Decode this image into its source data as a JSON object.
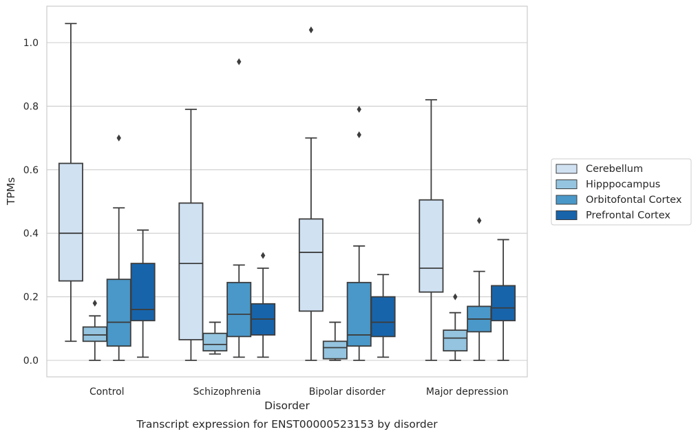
{
  "chart_data": {
    "type": "boxplot",
    "title": "",
    "caption": "Transcript expression for ENST00000523153 by disorder",
    "xlabel": "Disorder",
    "ylabel": "TPMs",
    "ylim": [
      -0.05,
      1.12
    ],
    "yticks": [
      "0.0",
      "0.2",
      "0.4",
      "0.6",
      "0.8",
      "1.0"
    ],
    "grid": "horizontal",
    "legend_position": "right",
    "categories": [
      "Control",
      "Schizophrenia",
      "Bipolar disorder",
      "Major depression"
    ],
    "series": [
      {
        "name": "Cerebellum",
        "color": "#d0e1f2",
        "boxes": [
          {
            "q1": 0.25,
            "median": 0.4,
            "q3": 0.62,
            "whisker_low": 0.06,
            "whisker_high": 1.06,
            "outliers": []
          },
          {
            "q1": 0.065,
            "median": 0.305,
            "q3": 0.495,
            "whisker_low": 0.0,
            "whisker_high": 0.79,
            "outliers": []
          },
          {
            "q1": 0.155,
            "median": 0.34,
            "q3": 0.445,
            "whisker_low": 0.0,
            "whisker_high": 0.7,
            "outliers": [
              1.04
            ]
          },
          {
            "q1": 0.215,
            "median": 0.29,
            "q3": 0.505,
            "whisker_low": 0.0,
            "whisker_high": 0.82,
            "outliers": []
          }
        ]
      },
      {
        "name": "Hipppocampus",
        "color": "#94c4df",
        "boxes": [
          {
            "q1": 0.06,
            "median": 0.08,
            "q3": 0.105,
            "whisker_low": 0.0,
            "whisker_high": 0.14,
            "outliers": [
              0.18
            ]
          },
          {
            "q1": 0.03,
            "median": 0.05,
            "q3": 0.085,
            "whisker_low": 0.02,
            "whisker_high": 0.12,
            "outliers": []
          },
          {
            "q1": 0.005,
            "median": 0.04,
            "q3": 0.06,
            "whisker_low": 0.0,
            "whisker_high": 0.12,
            "outliers": []
          },
          {
            "q1": 0.03,
            "median": 0.07,
            "q3": 0.095,
            "whisker_low": 0.0,
            "whisker_high": 0.15,
            "outliers": [
              0.2
            ]
          }
        ]
      },
      {
        "name": "Orbitofontal Cortex",
        "color": "#4a98c9",
        "boxes": [
          {
            "q1": 0.045,
            "median": 0.12,
            "q3": 0.255,
            "whisker_low": 0.0,
            "whisker_high": 0.48,
            "outliers": [
              0.7
            ]
          },
          {
            "q1": 0.075,
            "median": 0.145,
            "q3": 0.245,
            "whisker_low": 0.01,
            "whisker_high": 0.3,
            "outliers": [
              0.94
            ]
          },
          {
            "q1": 0.045,
            "median": 0.08,
            "q3": 0.245,
            "whisker_low": 0.0,
            "whisker_high": 0.36,
            "outliers": [
              0.71,
              0.79
            ]
          },
          {
            "q1": 0.09,
            "median": 0.13,
            "q3": 0.17,
            "whisker_low": 0.0,
            "whisker_high": 0.28,
            "outliers": [
              0.44
            ]
          }
        ]
      },
      {
        "name": "Prefrontal Cortex",
        "color": "#1764ab",
        "boxes": [
          {
            "q1": 0.125,
            "median": 0.16,
            "q3": 0.305,
            "whisker_low": 0.01,
            "whisker_high": 0.41,
            "outliers": []
          },
          {
            "q1": 0.08,
            "median": 0.13,
            "q3": 0.178,
            "whisker_low": 0.01,
            "whisker_high": 0.29,
            "outliers": [
              0.33
            ]
          },
          {
            "q1": 0.075,
            "median": 0.12,
            "q3": 0.2,
            "whisker_low": 0.01,
            "whisker_high": 0.27,
            "outliers": []
          },
          {
            "q1": 0.125,
            "median": 0.165,
            "q3": 0.235,
            "whisker_low": 0.0,
            "whisker_high": 0.38,
            "outliers": []
          }
        ]
      }
    ]
  }
}
